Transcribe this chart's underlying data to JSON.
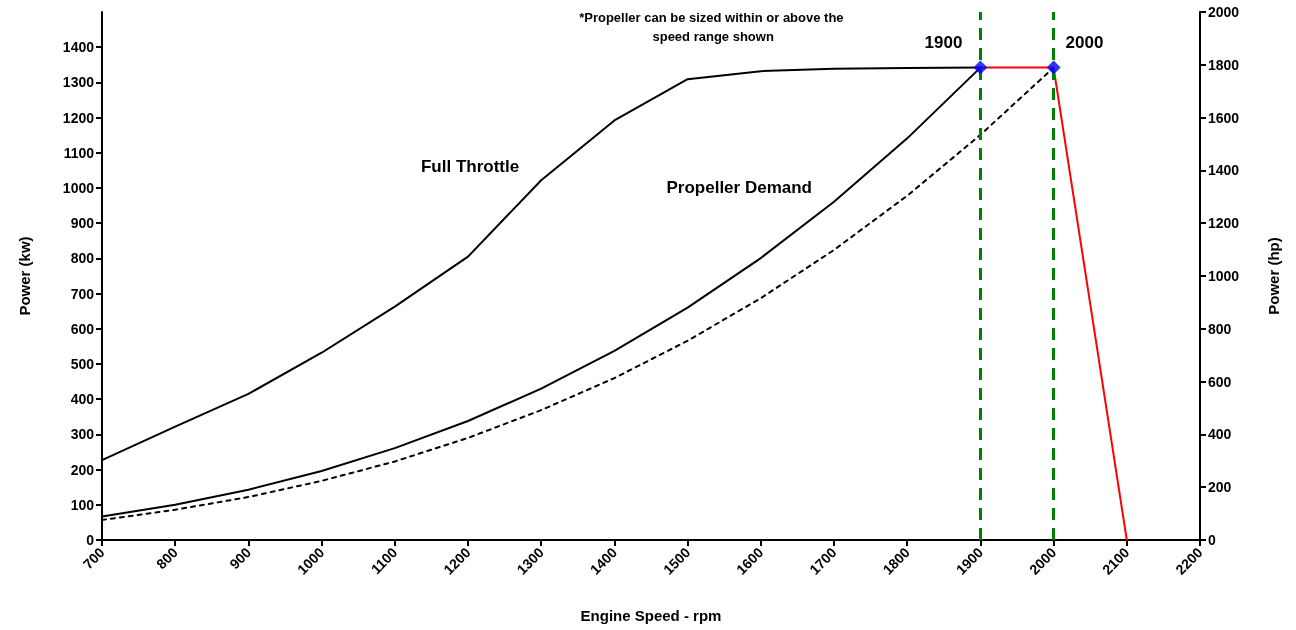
{
  "chart_data": {
    "type": "line",
    "xlabel": "Engine Speed - rpm",
    "ylabel": "Power (kw)",
    "y2label": "Power (hp)",
    "xlim": [
      700,
      2200
    ],
    "xticks": [
      700,
      800,
      900,
      1000,
      1100,
      1200,
      1300,
      1400,
      1500,
      1600,
      1700,
      1800,
      1900,
      2000,
      2100,
      2200
    ],
    "ylim": [
      0,
      1500
    ],
    "yticks": [
      0,
      100,
      200,
      300,
      400,
      500,
      600,
      700,
      800,
      900,
      1000,
      1100,
      1200,
      1300,
      1400
    ],
    "y2lim": [
      0,
      2000
    ],
    "y2ticks": [
      0,
      200,
      400,
      600,
      800,
      1000,
      1200,
      1400,
      1600,
      1800,
      2000
    ],
    "grid": false,
    "legend": false,
    "series": [
      {
        "name": "Full Throttle",
        "color": "#000000",
        "marker": "none",
        "line_style": "solid",
        "x": [
          700,
          800,
          900,
          1000,
          1100,
          1200,
          1300,
          1400,
          1500,
          1600,
          1700,
          1800,
          1900
        ],
        "values": [
          227,
          322,
          415,
          532,
          663,
          805,
          1022,
          1192,
          1309,
          1332,
          1339,
          1341,
          1342
        ]
      },
      {
        "name": "Propeller Demand",
        "color": "#000000",
        "marker": "none",
        "line_style": "solid",
        "x": [
          700,
          800,
          900,
          1000,
          1100,
          1200,
          1300,
          1400,
          1500,
          1600,
          1700,
          1800,
          1900
        ],
        "values": [
          67,
          100,
          143,
          196,
          261,
          338,
          430,
          537,
          660,
          801,
          961,
          1141,
          1342
        ]
      },
      {
        "color": "#000000",
        "marker": "none",
        "line_style": "dashed",
        "x": [
          700,
          800,
          900,
          1000,
          1100,
          1200,
          1300,
          1400,
          1500,
          1600,
          1700,
          1800,
          1900,
          2000
        ],
        "values": [
          57,
          86,
          122,
          168,
          223,
          290,
          369,
          460,
          566,
          687,
          824,
          978,
          1151,
          1342
        ]
      },
      {
        "color": "#ff0000",
        "marker": "none",
        "line_style": "solid",
        "x": [
          1900,
          2000,
          2100
        ],
        "values": [
          1342,
          1342,
          0
        ]
      },
      {
        "type": "scatter",
        "color": "#0000ff",
        "marker": "diamond",
        "x": [
          1900,
          2000
        ],
        "values": [
          1342,
          1342
        ]
      }
    ],
    "ref_lines": [
      {
        "axis": "x",
        "value": 1900,
        "label": "1900",
        "color": "#008000",
        "line_style": "dashed"
      },
      {
        "axis": "x",
        "value": 2000,
        "label": "2000",
        "color": "#008000",
        "line_style": "dashed"
      }
    ],
    "annotations": [
      "*Propeller can be sized within or above the speed range shown"
    ]
  }
}
